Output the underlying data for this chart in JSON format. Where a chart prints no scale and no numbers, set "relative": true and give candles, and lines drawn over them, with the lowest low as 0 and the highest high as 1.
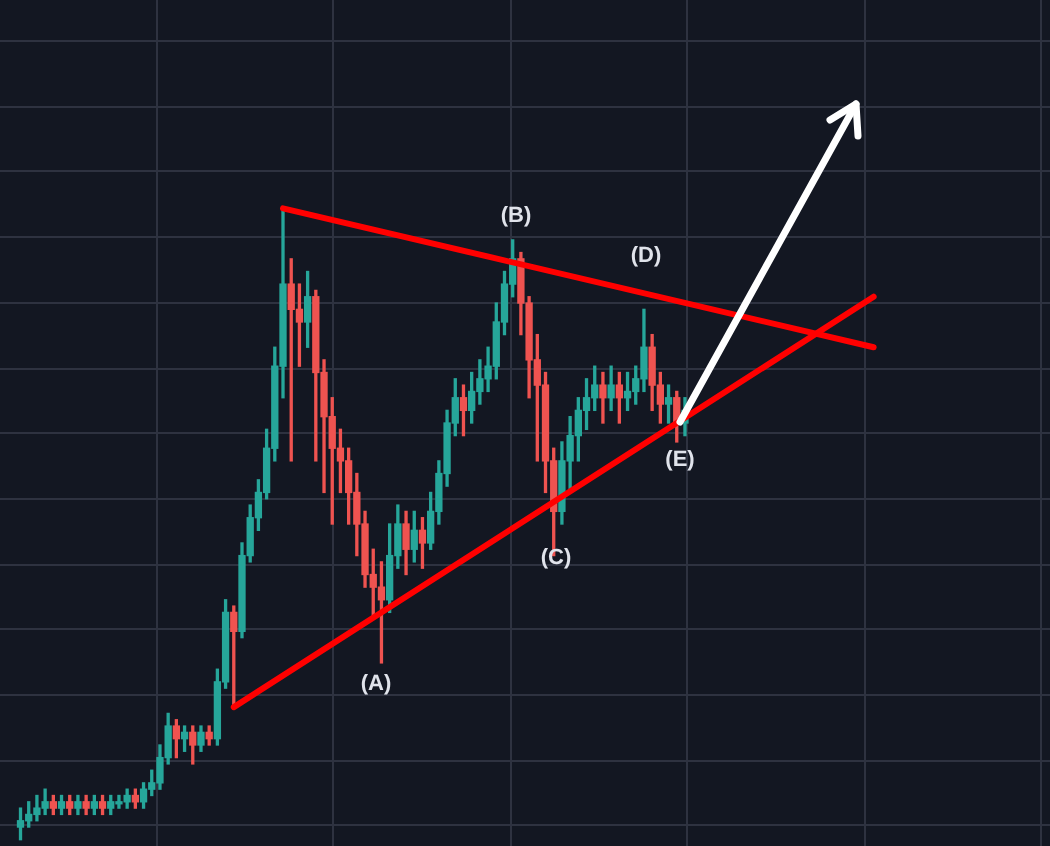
{
  "chart_data": {
    "type": "candlestick",
    "relative": true,
    "grid": true,
    "legend": false,
    "colors": [
      null,
      null,
      "#26a69a",
      "#26a69a",
      "#26a69a",
      "#26a69a",
      "#ef5350",
      "#26a69a",
      "#ef5350",
      "#26a69a",
      "#ef5350",
      "#26a69a",
      "#ef5350",
      "#26a69a",
      "#26a69a",
      "#26a69a",
      "#ef5350",
      "#26a69a",
      "#26a69a",
      "#26a69a",
      "#26a69a",
      "#ef5350",
      "#26a69a",
      "#ef5350",
      "#26a69a",
      "#ef5350",
      "#26a69a",
      "#26a69a",
      "#ef5350",
      "#26a69a",
      "#26a69a",
      "#26a69a",
      "#26a69a",
      "#26a69a",
      "#26a69a",
      "#ef5350",
      "#ef5350",
      "#26a69a",
      "#ef5350",
      "#ef5350",
      "#ef5350",
      "#ef5350",
      "#ef5350",
      "#ef5350",
      "#ef5350",
      "#ef5350",
      "#ef5350",
      "#26a69a",
      "#26a69a",
      "#ef5350",
      "#26a69a",
      "#ef5350",
      "#26a69a",
      "#26a69a",
      "#26a69a",
      "#26a69a",
      "#ef5350",
      "#26a69a",
      "#26a69a",
      "#26a69a",
      "#26a69a",
      "#26a69a",
      "#26a69a",
      "#ef5350",
      "#ef5350",
      "#ef5350",
      "#ef5350",
      "#ef5350",
      "#26a69a",
      "#26a69a",
      "#26a69a",
      "#26a69a",
      "#26a69a",
      "#ef5350",
      "#26a69a",
      "#ef5350",
      "#26a69a",
      "#26a69a",
      "#26a69a",
      "#ef5350",
      "#ef5350",
      "#26a69a",
      "#ef5350",
      "#26a69a",
      null,
      null,
      null,
      null,
      null,
      null,
      null,
      null,
      null,
      null,
      null,
      null,
      null,
      null,
      null,
      null,
      null,
      null,
      null,
      null,
      null,
      null,
      null,
      null,
      null,
      null,
      null,
      null,
      null,
      null,
      null,
      null,
      null,
      null,
      null,
      null,
      null,
      null,
      null,
      null,
      null,
      null,
      null,
      null
    ],
    "categories": [
      null,
      null,
      null,
      null,
      null,
      null,
      null,
      null,
      null,
      null,
      null,
      null,
      null,
      null,
      null,
      null,
      null,
      null,
      null,
      null,
      null,
      null,
      null,
      null,
      null,
      null,
      null,
      null,
      null,
      null,
      null,
      null,
      null,
      null,
      null,
      null,
      null,
      null,
      null,
      null,
      null,
      null,
      null,
      null,
      null,
      null,
      null,
      null,
      null,
      null,
      null,
      null,
      null,
      null,
      null,
      null,
      null,
      null,
      null,
      null,
      null,
      null,
      null,
      null,
      null,
      null,
      null,
      null,
      null,
      null,
      null,
      null,
      null,
      null,
      null,
      null,
      null,
      null,
      null,
      null,
      null,
      null,
      null,
      null,
      null,
      null,
      null,
      null,
      null,
      null,
      null,
      null,
      null,
      null,
      null,
      null,
      null,
      null,
      null,
      null,
      null,
      null,
      null,
      null,
      null,
      null,
      null,
      null,
      null,
      null,
      null,
      null,
      null,
      null,
      null,
      null,
      null,
      null,
      null,
      null,
      null,
      null,
      null,
      null,
      null,
      null,
      null,
      null
    ],
    "ohlc": [
      null,
      null,
      [
        0.02,
        0.05,
        0,
        0.03
      ],
      [
        0.03,
        0.06,
        0.02,
        0.04
      ],
      [
        0.04,
        0.07,
        0.03,
        0.05
      ],
      [
        0.05,
        0.08,
        0.04,
        0.06
      ],
      [
        0.06,
        0.07,
        0.04,
        0.05
      ],
      [
        0.05,
        0.07,
        0.04,
        0.06
      ],
      [
        0.06,
        0.07,
        0.04,
        0.05
      ],
      [
        0.05,
        0.07,
        0.04,
        0.06
      ],
      [
        0.06,
        0.07,
        0.04,
        0.05
      ],
      [
        0.05,
        0.07,
        0.04,
        0.06
      ],
      [
        0.06,
        0.07,
        0.04,
        0.05
      ],
      [
        0.05,
        0.07,
        0.04,
        0.06
      ],
      [
        0.06,
        0.07,
        0.05,
        0.06
      ],
      [
        0.06,
        0.08,
        0.05,
        0.07
      ],
      [
        0.07,
        0.08,
        0.05,
        0.06
      ],
      [
        0.06,
        0.09,
        0.05,
        0.08
      ],
      [
        0.08,
        0.11,
        0.07,
        0.09
      ],
      [
        0.09,
        0.15,
        0.08,
        0.13
      ],
      [
        0.13,
        0.2,
        0.12,
        0.18
      ],
      [
        0.18,
        0.19,
        0.13,
        0.16
      ],
      [
        0.16,
        0.18,
        0.14,
        0.17
      ],
      [
        0.17,
        0.18,
        0.12,
        0.15
      ],
      [
        0.15,
        0.18,
        0.14,
        0.17
      ],
      [
        0.17,
        0.18,
        0.15,
        0.16
      ],
      [
        0.16,
        0.27,
        0.15,
        0.25
      ],
      [
        0.25,
        0.38,
        0.24,
        0.36
      ],
      [
        0.36,
        0.37,
        0.21,
        0.33
      ],
      [
        0.33,
        0.47,
        0.32,
        0.45
      ],
      [
        0.45,
        0.53,
        0.44,
        0.51
      ],
      [
        0.51,
        0.57,
        0.49,
        0.55
      ],
      [
        0.55,
        0.65,
        0.54,
        0.62
      ],
      [
        0.62,
        0.78,
        0.6,
        0.75
      ],
      [
        0.75,
        1,
        0.7,
        0.88
      ],
      [
        0.88,
        0.92,
        0.6,
        0.84
      ],
      [
        0.84,
        0.88,
        0.75,
        0.82
      ],
      [
        0.82,
        0.9,
        0.78,
        0.86
      ],
      [
        0.86,
        0.87,
        0.6,
        0.74
      ],
      [
        0.74,
        0.76,
        0.55,
        0.67
      ],
      [
        0.67,
        0.7,
        0.5,
        0.62
      ],
      [
        0.62,
        0.65,
        0.55,
        0.6
      ],
      [
        0.6,
        0.62,
        0.5,
        0.55
      ],
      [
        0.55,
        0.58,
        0.45,
        0.5
      ],
      [
        0.5,
        0.52,
        0.4,
        0.42
      ],
      [
        0.42,
        0.46,
        0.35,
        0.4
      ],
      [
        0.4,
        0.44,
        0.28,
        0.38
      ],
      [
        0.38,
        0.5,
        0.36,
        0.45
      ],
      [
        0.45,
        0.53,
        0.43,
        0.5
      ],
      [
        0.5,
        0.52,
        0.42,
        0.46
      ],
      [
        0.46,
        0.52,
        0.44,
        0.49
      ],
      [
        0.49,
        0.51,
        0.43,
        0.47
      ],
      [
        0.47,
        0.55,
        0.46,
        0.52
      ],
      [
        0.52,
        0.6,
        0.5,
        0.58
      ],
      [
        0.58,
        0.68,
        0.56,
        0.66
      ],
      [
        0.66,
        0.73,
        0.64,
        0.7
      ],
      [
        0.7,
        0.72,
        0.64,
        0.68
      ],
      [
        0.68,
        0.74,
        0.66,
        0.71
      ],
      [
        0.71,
        0.76,
        0.69,
        0.73
      ],
      [
        0.73,
        0.78,
        0.71,
        0.75
      ],
      [
        0.75,
        0.85,
        0.73,
        0.82
      ],
      [
        0.82,
        0.9,
        0.8,
        0.88
      ],
      [
        0.88,
        0.95,
        0.86,
        0.92
      ],
      [
        0.92,
        0.93,
        0.8,
        0.85
      ],
      [
        0.85,
        0.86,
        0.7,
        0.76
      ],
      [
        0.76,
        0.8,
        0.6,
        0.72
      ],
      [
        0.72,
        0.74,
        0.55,
        0.6
      ],
      [
        0.6,
        0.62,
        0.45,
        0.52
      ],
      [
        0.52,
        0.63,
        0.5,
        0.6
      ],
      [
        0.6,
        0.67,
        0.55,
        0.64
      ],
      [
        0.64,
        0.7,
        0.6,
        0.68
      ],
      [
        0.68,
        0.73,
        0.65,
        0.7
      ],
      [
        0.7,
        0.75,
        0.68,
        0.72
      ],
      [
        0.72,
        0.74,
        0.66,
        0.7
      ],
      [
        0.7,
        0.75,
        0.68,
        0.72
      ],
      [
        0.72,
        0.74,
        0.66,
        0.7
      ],
      [
        0.7,
        0.74,
        0.68,
        0.71
      ],
      [
        0.71,
        0.75,
        0.69,
        0.73
      ],
      [
        0.73,
        0.84,
        0.71,
        0.78
      ],
      [
        0.78,
        0.8,
        0.68,
        0.72
      ],
      [
        0.72,
        0.74,
        0.66,
        0.69
      ],
      [
        0.69,
        0.72,
        0.66,
        0.7
      ],
      [
        0.7,
        0.71,
        0.63,
        0.66
      ],
      [
        0.66,
        0.7,
        0.64,
        0.68
      ],
      null,
      null,
      null,
      null,
      null,
      null,
      null,
      null,
      null,
      null,
      null,
      null,
      null,
      null,
      null,
      null,
      null,
      null,
      null,
      null,
      null,
      null,
      null,
      null,
      null,
      null,
      null,
      null,
      null,
      null,
      null,
      null,
      null,
      null,
      null,
      null,
      null,
      null,
      null,
      null,
      null,
      null,
      null,
      null
    ],
    "series": [
      {
        "type": "line",
        "color": "#ff0000",
        "values": [
          null,
          null,
          null,
          null,
          null,
          null,
          null,
          null,
          null,
          null,
          null,
          null,
          null,
          null,
          null,
          null,
          null,
          null,
          null,
          null,
          null,
          null,
          null,
          null,
          null,
          null,
          null,
          null,
          null,
          null,
          null,
          null,
          null,
          null,
          1,
          null,
          null,
          null,
          null,
          null,
          null,
          null,
          null,
          null,
          null,
          null,
          null,
          null,
          null,
          null,
          null,
          null,
          null,
          null,
          null,
          null,
          null,
          null,
          null,
          null,
          null,
          null,
          null,
          null,
          null,
          null,
          null,
          null,
          null,
          null,
          null,
          null,
          null,
          null,
          null,
          null,
          null,
          null,
          null,
          null,
          null,
          null,
          null,
          null,
          null,
          null,
          null,
          null,
          null,
          null,
          null,
          null,
          null,
          null,
          null,
          null,
          null,
          null,
          null,
          null,
          null,
          null,
          null,
          null,
          null,
          null,
          0.78,
          null,
          null,
          null,
          null,
          null,
          null,
          null,
          null,
          null,
          null,
          null,
          null,
          null,
          null,
          null,
          null,
          null,
          null,
          null,
          null,
          null
        ]
      },
      {
        "type": "line",
        "color": "#ff0000",
        "values": [
          null,
          null,
          null,
          null,
          null,
          null,
          null,
          null,
          null,
          null,
          null,
          null,
          null,
          null,
          null,
          null,
          null,
          null,
          null,
          null,
          null,
          null,
          null,
          null,
          null,
          null,
          null,
          null,
          0.21,
          null,
          null,
          null,
          null,
          null,
          null,
          null,
          null,
          null,
          null,
          null,
          null,
          null,
          null,
          null,
          null,
          null,
          null,
          null,
          null,
          null,
          null,
          null,
          null,
          null,
          null,
          null,
          null,
          null,
          null,
          null,
          null,
          null,
          null,
          null,
          null,
          null,
          null,
          null,
          null,
          null,
          null,
          null,
          null,
          null,
          null,
          null,
          null,
          null,
          null,
          null,
          null,
          null,
          null,
          null,
          null,
          null,
          null,
          null,
          null,
          null,
          null,
          null,
          null,
          null,
          null,
          null,
          null,
          null,
          null,
          null,
          null,
          null,
          null,
          null,
          null,
          null,
          0.86,
          null,
          null,
          null,
          null,
          null,
          null,
          null,
          null,
          null,
          null,
          null,
          null,
          null,
          null,
          null,
          null,
          null,
          null,
          null,
          null,
          null
        ]
      }
    ],
    "marker": "none",
    "annotations": [
      "(A)",
      "(B)",
      "(C)",
      "(D)",
      "(E)"
    ]
  }
}
